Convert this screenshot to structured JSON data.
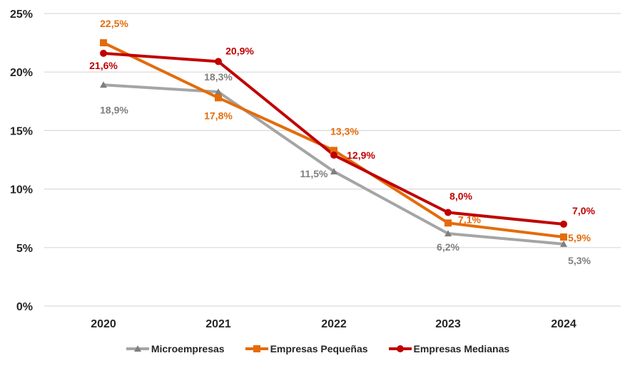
{
  "chart_data": {
    "type": "line",
    "title": "",
    "xlabel": "",
    "ylabel": "",
    "categories": [
      "2020",
      "2021",
      "2022",
      "2023",
      "2024"
    ],
    "ylim": [
      0,
      25
    ],
    "yticks": [
      0,
      5,
      10,
      15,
      20,
      25
    ],
    "ytick_labels": [
      "0%",
      "5%",
      "10%",
      "15%",
      "20%",
      "25%"
    ],
    "grid": true,
    "legend_position": "bottom",
    "series": [
      {
        "name": "Microempresas",
        "color": "#A5A5A5",
        "label_color": "#7F7F7F",
        "marker": "triangle",
        "values": [
          18.9,
          18.3,
          11.5,
          6.2,
          5.3
        ],
        "labels": [
          "18,9%",
          "18,3%",
          "11,5%",
          "6,2%",
          "5,3%"
        ]
      },
      {
        "name": "Empresas Pequeñas",
        "color": "#E36C0A",
        "label_color": "#E36C0A",
        "marker": "square",
        "values": [
          22.5,
          17.8,
          13.3,
          7.1,
          5.9
        ],
        "labels": [
          "22,5%",
          "17,8%",
          "13,3%",
          "7,1%",
          "5,9%"
        ]
      },
      {
        "name": "Empresas Medianas",
        "color": "#C00000",
        "label_color": "#C00000",
        "marker": "circle",
        "values": [
          21.6,
          20.9,
          12.9,
          8.0,
          7.0
        ],
        "labels": [
          "21,6%",
          "20,9%",
          "12,9%",
          "8,0%",
          "7,0%"
        ]
      }
    ]
  }
}
